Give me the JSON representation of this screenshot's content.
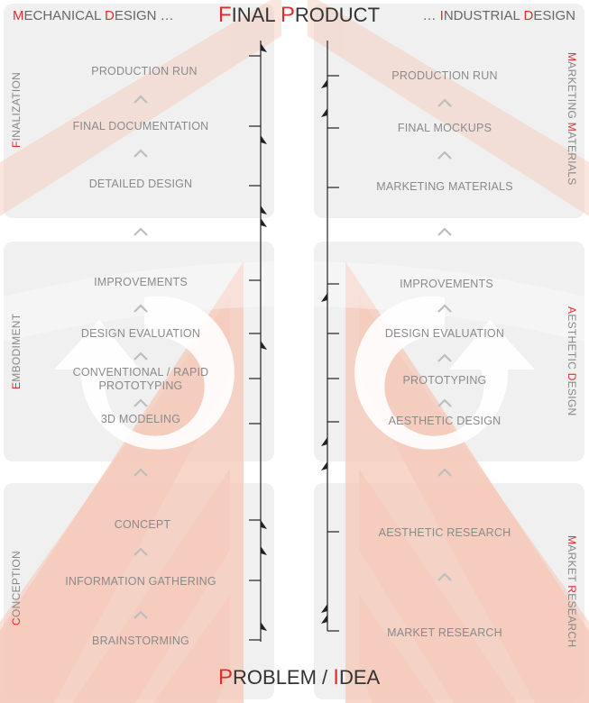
{
  "title_top": {
    "first_cap": "F",
    "first_rest": "INAL ",
    "second_cap": "P",
    "second_rest": "RODUCT"
  },
  "title_bottom": {
    "first_cap": "P",
    "first_rest": "ROBLEM / ",
    "second_cap": "I",
    "second_rest": "DEA"
  },
  "header_left": {
    "a_cap": "M",
    "a_rest": "ECHANICAL ",
    "b_cap": "D",
    "b_rest": "ESIGN …"
  },
  "header_right": {
    "pre": "… ",
    "a_cap": "I",
    "a_rest": "NDUSTRIAL ",
    "b_cap": "D",
    "b_rest": "ESIGN"
  },
  "left_phases": {
    "finalization": {
      "cap": "F",
      "rest": "INALIZATION"
    },
    "embodiment": {
      "cap": "E",
      "rest": "MBODIMENT"
    },
    "conception": {
      "cap": "C",
      "rest": "ONCEPTION"
    }
  },
  "right_phases": {
    "marketing": {
      "a_cap": "M",
      "a_rest": "ARKETING ",
      "b_cap": "M",
      "b_rest": "ATERIALS"
    },
    "aesthetic": {
      "a_cap": "A",
      "a_rest": "ESTHETIC ",
      "b_cap": "D",
      "b_rest": "ESIGN"
    },
    "market": {
      "a_cap": "M",
      "a_rest": "ARKET ",
      "b_cap": "R",
      "b_rest": "ESEARCH"
    }
  },
  "left_steps": {
    "production_run": "PRODUCTION RUN",
    "final_documentation": "FINAL DOCUMENTATION",
    "detailed_design": "DETAILED DESIGN",
    "improvements": "IMPROVEMENTS",
    "design_evaluation": "DESIGN EVALUATION",
    "prototyping": "CONVENTIONAL / RAPID PROTOTYPING",
    "modeling": "3D MODELING",
    "concept": "CONCEPT",
    "information_gathering": "INFORMATION GATHERING",
    "brainstorming": "BRAINSTORMING"
  },
  "right_steps": {
    "production_run": "PRODUCTION RUN",
    "final_mockups": "FINAL MOCKUPS",
    "marketing_materials": "MARKETING MATERIALS",
    "improvements": "IMPROVEMENTS",
    "design_evaluation": "DESIGN EVALUATION",
    "prototyping": "PROTOTYPING",
    "aesthetic_design": "AESTHETIC DESIGN",
    "aesthetic_research": "AESTHETIC RESEARCH",
    "market_research": "MARKET RESEARCH"
  },
  "colors": {
    "accent": "#d9302f",
    "stripe": "#f6c8b8",
    "panel": "#eeeeee",
    "text": "#8a8a8a"
  }
}
